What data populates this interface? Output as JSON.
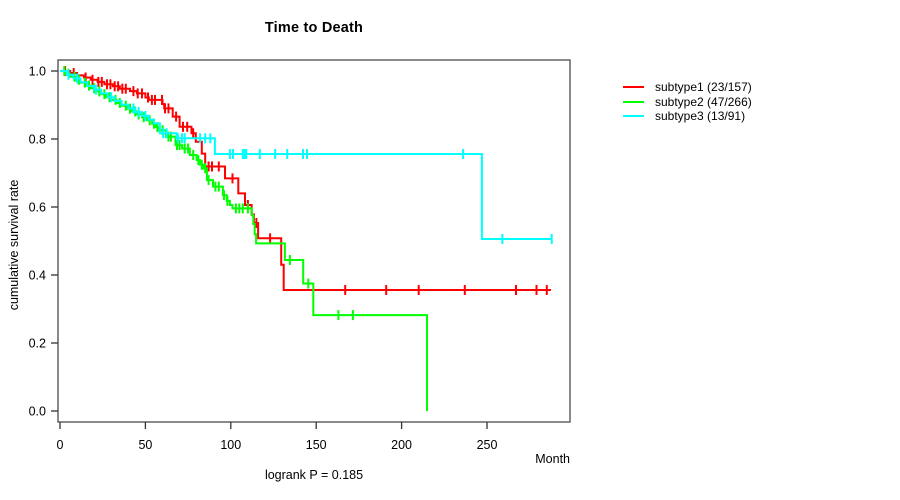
{
  "chart_data": {
    "type": "line",
    "subtype": "kaplan-meier-step-curves",
    "title": "Time to Death",
    "xlabel": "Month",
    "ylabel": "cumulative survival rate",
    "annotation": "logrank P = 0.185",
    "xlim": [
      0,
      298
    ],
    "ylim": [
      0.0,
      1.0
    ],
    "x_ticks": [
      "0",
      "50",
      "100",
      "150",
      "200",
      "250"
    ],
    "y_ticks": [
      "1.0",
      "0.8",
      "0.6",
      "0.4",
      "0.2",
      "0.0"
    ],
    "grid": false,
    "legend_position": "right-outside",
    "series": [
      {
        "id": "subtype1",
        "name": "subtype1 (23/157)",
        "events": 23,
        "n": 157,
        "color": "#ff0000",
        "steps": [
          [
            6,
            0.994
          ],
          [
            10,
            0.987
          ],
          [
            14,
            0.981
          ],
          [
            18,
            0.974
          ],
          [
            22,
            0.968
          ],
          [
            26,
            0.961
          ],
          [
            31,
            0.955
          ],
          [
            35,
            0.948
          ],
          [
            41,
            0.941
          ],
          [
            45,
            0.934
          ],
          [
            50,
            0.922
          ],
          [
            52,
            0.915
          ],
          [
            60,
            0.903
          ],
          [
            61,
            0.89
          ],
          [
            66,
            0.866
          ],
          [
            70,
            0.836
          ],
          [
            77,
            0.817
          ],
          [
            79.5,
            0.792
          ],
          [
            83,
            0.757
          ],
          [
            85,
            0.719
          ],
          [
            96.6,
            0.684
          ],
          [
            104.4,
            0.64
          ],
          [
            108.3,
            0.606
          ],
          [
            112.2,
            0.578
          ],
          [
            113.5,
            0.553
          ],
          [
            116,
            0.508
          ],
          [
            129.5,
            0.43
          ],
          [
            131,
            0.356
          ]
        ],
        "censor_months": [
          3,
          8,
          15,
          19,
          22.5,
          24.5,
          27.5,
          29.5,
          32,
          34,
          36.5,
          38.5,
          43,
          45.5,
          48,
          51.5,
          53.8,
          55.6,
          59.7,
          61.5,
          63.5,
          68,
          72,
          74.5,
          78,
          87,
          89,
          93,
          101,
          110,
          115,
          123,
          167,
          191,
          210,
          237,
          267,
          279,
          285
        ],
        "end_month": 287.5
      },
      {
        "id": "subtype2",
        "name": "subtype2 (47/266)",
        "events": 47,
        "n": 266,
        "color": "#00ff00",
        "steps": [
          [
            3,
            0.992
          ],
          [
            6,
            0.983
          ],
          [
            9,
            0.974
          ],
          [
            12,
            0.966
          ],
          [
            15,
            0.957
          ],
          [
            18,
            0.949
          ],
          [
            21,
            0.94
          ],
          [
            24,
            0.932
          ],
          [
            27,
            0.923
          ],
          [
            30,
            0.915
          ],
          [
            33,
            0.906
          ],
          [
            36,
            0.898
          ],
          [
            39,
            0.889
          ],
          [
            42,
            0.881
          ],
          [
            45,
            0.872
          ],
          [
            48,
            0.864
          ],
          [
            51,
            0.855
          ],
          [
            54,
            0.845
          ],
          [
            56,
            0.835
          ],
          [
            58,
            0.826
          ],
          [
            62,
            0.807
          ],
          [
            67.6,
            0.782
          ],
          [
            71.5,
            0.772
          ],
          [
            76,
            0.753
          ],
          [
            80,
            0.738
          ],
          [
            82,
            0.724
          ],
          [
            84,
            0.714
          ],
          [
            86,
            0.679
          ],
          [
            89.6,
            0.66
          ],
          [
            95.4,
            0.635
          ],
          [
            97.6,
            0.618
          ],
          [
            99.5,
            0.606
          ],
          [
            101,
            0.596
          ],
          [
            112.3,
            0.576
          ],
          [
            113.2,
            0.55
          ],
          [
            114,
            0.52
          ],
          [
            114.8,
            0.493
          ],
          [
            131.7,
            0.444
          ],
          [
            142.4,
            0.375
          ],
          [
            148.3,
            0.282
          ],
          [
            214.9,
            0.0
          ]
        ],
        "censor_months": [
          2.5,
          5,
          8.5,
          11,
          14.5,
          17,
          20,
          23,
          26,
          29,
          32.5,
          35,
          38.5,
          41,
          44,
          46,
          49,
          52.5,
          55,
          57,
          60,
          63.5,
          65,
          68.5,
          70,
          73,
          75,
          78,
          81,
          83,
          85,
          87,
          91,
          93,
          96,
          98,
          103,
          105,
          107,
          110,
          134.6,
          145.4,
          163,
          171.5
        ],
        "end_month": 214.9
      },
      {
        "id": "subtype3",
        "name": "subtype3 (13/91)",
        "events": 13,
        "n": 91,
        "color": "#00ffff",
        "steps": [
          [
            4,
            0.989
          ],
          [
            8,
            0.978
          ],
          [
            12,
            0.967
          ],
          [
            16,
            0.956
          ],
          [
            20,
            0.945
          ],
          [
            24,
            0.934
          ],
          [
            28,
            0.923
          ],
          [
            32,
            0.912
          ],
          [
            36,
            0.901
          ],
          [
            40,
            0.89
          ],
          [
            44,
            0.879
          ],
          [
            48,
            0.868
          ],
          [
            52,
            0.857
          ],
          [
            55,
            0.846
          ],
          [
            58.5,
            0.817
          ],
          [
            68.3,
            0.802
          ],
          [
            90.7,
            0.756
          ],
          [
            247,
            0.506
          ]
        ],
        "censor_months": [
          5,
          10,
          21,
          30,
          43,
          46,
          50,
          60.4,
          62.4,
          69,
          71.4,
          73,
          82,
          85,
          88,
          99.5,
          101.3,
          107,
          108,
          109,
          117,
          126,
          133,
          142.3,
          144.6,
          236,
          259,
          287.9
        ],
        "end_month": 287.9
      }
    ]
  }
}
